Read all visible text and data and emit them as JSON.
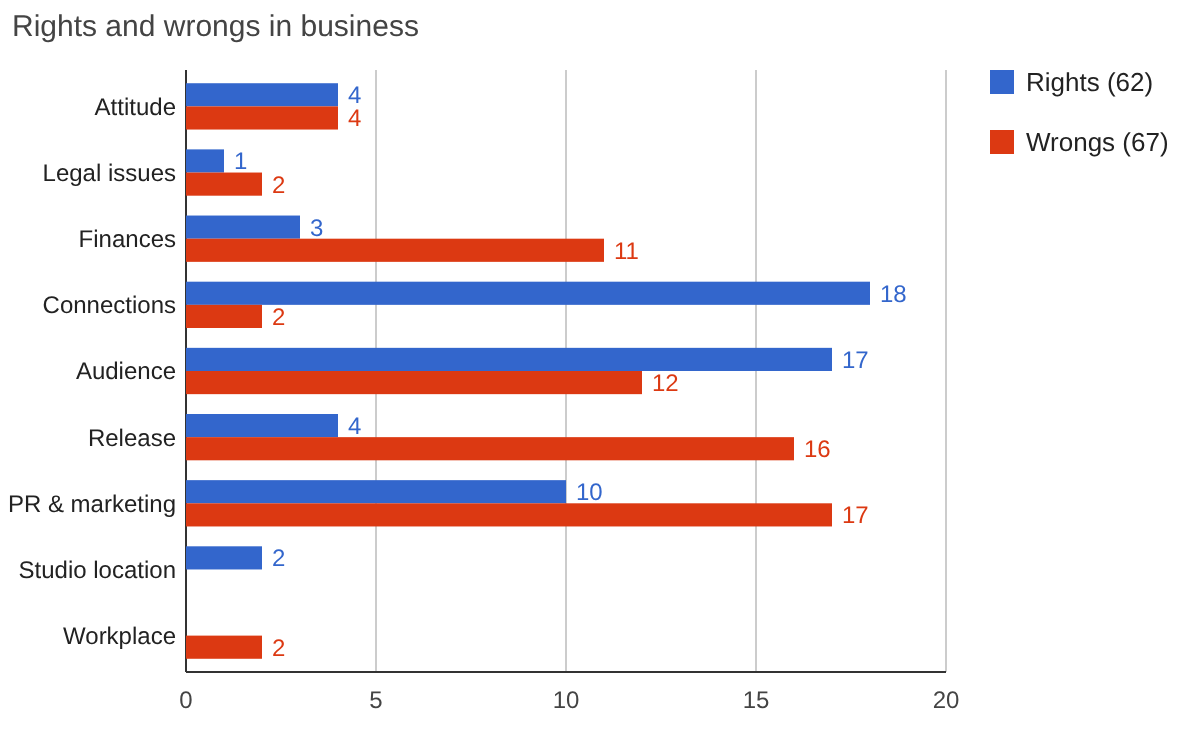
{
  "chart_data": {
    "type": "bar",
    "orientation": "horizontal",
    "title": "Rights and wrongs in business",
    "categories": [
      "Attitude",
      "Legal issues",
      "Finances",
      "Connections",
      "Audience",
      "Release",
      "PR & marketing",
      "Studio location",
      "Workplace"
    ],
    "series": [
      {
        "name": "Rights (62)",
        "color": "#3366cc",
        "values": [
          4,
          1,
          3,
          18,
          17,
          4,
          10,
          2,
          null
        ]
      },
      {
        "name": "Wrongs (67)",
        "color": "#dc3912",
        "values": [
          4,
          2,
          11,
          2,
          12,
          16,
          17,
          null,
          2
        ]
      }
    ],
    "xlim": [
      0,
      20
    ],
    "xticks": [
      0,
      5,
      10,
      15,
      20
    ],
    "grid": "x",
    "legend": "right",
    "data_labels": true
  }
}
